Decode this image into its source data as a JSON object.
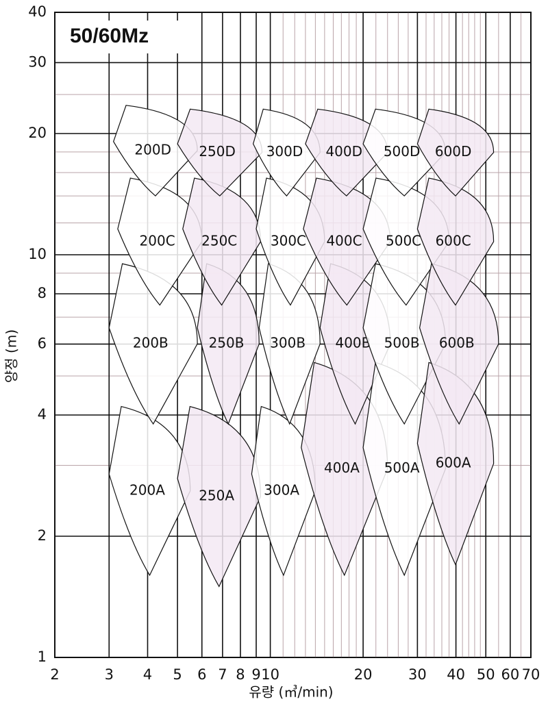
{
  "chart_data": {
    "type": "region",
    "title": "50/60Mz",
    "x_label": "유량 (㎥/min)",
    "y_label": "양정 (m)",
    "log_x": true,
    "log_y": true,
    "grid": true,
    "xlim": [
      2,
      70
    ],
    "ylim": [
      1,
      40
    ],
    "xticks": [
      2,
      3,
      4,
      5,
      6,
      7,
      8,
      9,
      10,
      20,
      30,
      40,
      50,
      60,
      70
    ],
    "xminor": [
      11,
      12,
      13,
      14,
      15,
      16,
      17,
      18,
      19,
      22,
      24,
      26,
      28,
      32,
      34,
      36,
      38,
      42,
      44,
      46,
      48,
      55,
      65
    ],
    "yticks": [
      1,
      2,
      4,
      6,
      8,
      10,
      20,
      30,
      40
    ],
    "yminor": [
      3,
      5,
      7,
      9,
      12,
      14,
      16,
      18,
      25
    ],
    "regions": [
      {
        "label": "200A",
        "x": [
          3,
          5.5
        ],
        "y": [
          1.6,
          4.2
        ],
        "color": "#ffffff"
      },
      {
        "label": "200B",
        "x": [
          3,
          5.8
        ],
        "y": [
          3.8,
          9.5
        ],
        "color": "#ffffff"
      },
      {
        "label": "200C",
        "x": [
          3.2,
          6
        ],
        "y": [
          7.5,
          15.5
        ],
        "color": "#ffffff"
      },
      {
        "label": "200D",
        "x": [
          3.1,
          5.8
        ],
        "y": [
          14,
          23.5
        ],
        "color": "#ffffff"
      },
      {
        "label": "250A",
        "x": [
          5,
          9.3
        ],
        "y": [
          1.5,
          4.2
        ],
        "color": "#f3e9f3"
      },
      {
        "label": "250B",
        "x": [
          5.8,
          9.2
        ],
        "y": [
          3.8,
          9.5
        ],
        "color": "#f3e9f3"
      },
      {
        "label": "250C",
        "x": [
          5.2,
          9.3
        ],
        "y": [
          7.5,
          15.5
        ],
        "color": "#f3e9f3"
      },
      {
        "label": "250D",
        "x": [
          5,
          9.4
        ],
        "y": [
          14,
          23
        ],
        "color": "#f3e9f3"
      },
      {
        "label": "300A",
        "x": [
          8.7,
          14
        ],
        "y": [
          1.6,
          4.2
        ],
        "color": "#ffffff"
      },
      {
        "label": "300B",
        "x": [
          9.2,
          14.5
        ],
        "y": [
          3.8,
          9.5
        ],
        "color": "#ffffff"
      },
      {
        "label": "300C",
        "x": [
          9,
          15
        ],
        "y": [
          7.5,
          15.5
        ],
        "color": "#ffffff"
      },
      {
        "label": "300D",
        "x": [
          8.8,
          14.5
        ],
        "y": [
          14,
          23
        ],
        "color": "#ffffff"
      },
      {
        "label": "400A",
        "x": [
          12.6,
          24
        ],
        "y": [
          1.6,
          5.4
        ],
        "color": "#f3e9f3"
      },
      {
        "label": "400B",
        "x": [
          14.5,
          24.5
        ],
        "y": [
          3.8,
          9.5
        ],
        "color": "#f3e9f3"
      },
      {
        "label": "400C",
        "x": [
          12.8,
          24.5
        ],
        "y": [
          7.5,
          15.5
        ],
        "color": "#f3e9f3"
      },
      {
        "label": "400D",
        "x": [
          13,
          24
        ],
        "y": [
          14,
          23
        ],
        "color": "#f3e9f3"
      },
      {
        "label": "500A",
        "x": [
          20,
          37
        ],
        "y": [
          1.6,
          5.4
        ],
        "color": "#ffffff"
      },
      {
        "label": "500B",
        "x": [
          20,
          37
        ],
        "y": [
          3.8,
          9.5
        ],
        "color": "#ffffff"
      },
      {
        "label": "500C",
        "x": [
          20,
          38
        ],
        "y": [
          7.5,
          15.5
        ],
        "color": "#ffffff"
      },
      {
        "label": "500D",
        "x": [
          20,
          37
        ],
        "y": [
          14,
          23
        ],
        "color": "#ffffff"
      },
      {
        "label": "600A",
        "x": [
          30,
          53
        ],
        "y": [
          1.7,
          5.4
        ],
        "color": "#f3e9f3"
      },
      {
        "label": "600B",
        "x": [
          30.5,
          55
        ],
        "y": [
          3.8,
          9.5
        ],
        "color": "#f3e9f3"
      },
      {
        "label": "600C",
        "x": [
          30,
          53
        ],
        "y": [
          7.5,
          15.5
        ],
        "color": "#f3e9f3"
      },
      {
        "label": "600D",
        "x": [
          30,
          53
        ],
        "y": [
          14,
          23
        ],
        "color": "#f3e9f3"
      }
    ]
  }
}
